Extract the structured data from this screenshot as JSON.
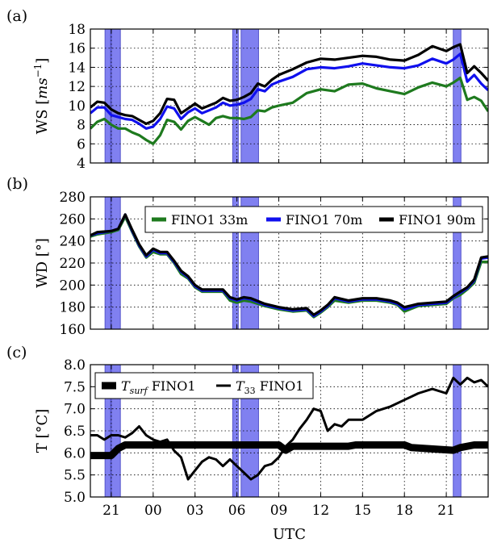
{
  "chart_data": [
    {
      "type": "line",
      "panel_label": "(a)",
      "ylabel": "WS [ms⁻¹]",
      "xlabel": "",
      "ylim": [
        4,
        18
      ],
      "yticks": [
        "4",
        "6",
        "8",
        "10",
        "12",
        "14",
        "16",
        "18"
      ],
      "xlim": [
        19.5,
        48
      ],
      "grid": true,
      "legend": "none",
      "shaded_bands": [
        [
          20.55,
          20.95
        ],
        [
          21.0,
          21.65
        ],
        [
          29.7,
          30.1
        ],
        [
          30.3,
          31.55
        ],
        [
          45.5,
          46.05
        ]
      ],
      "series": [
        {
          "color": "#1e7a1e",
          "x": [
            19.5,
            20.0,
            20.5,
            21.0,
            21.5,
            22.0,
            22.5,
            23.0,
            23.5,
            24.0,
            24.5,
            25.0,
            25.5,
            26.0,
            26.5,
            27.0,
            27.5,
            28.0,
            28.5,
            29.0,
            29.5,
            30.0,
            30.5,
            31.0,
            31.5,
            32.0,
            32.5,
            33.0,
            34.0,
            35.0,
            36.0,
            37.0,
            38.0,
            39.0,
            40.0,
            41.0,
            42.0,
            43.0,
            44.0,
            45.0,
            45.5,
            46.0,
            46.5,
            47.0,
            47.5,
            48.0
          ],
          "values": [
            7.6,
            8.3,
            8.6,
            8.0,
            7.6,
            7.6,
            7.2,
            6.9,
            6.4,
            6.0,
            6.9,
            8.5,
            8.3,
            7.5,
            8.4,
            8.8,
            8.4,
            8.0,
            8.7,
            8.9,
            8.7,
            8.7,
            8.6,
            8.8,
            9.5,
            9.4,
            9.8,
            10.0,
            10.3,
            11.3,
            11.7,
            11.5,
            12.2,
            12.3,
            11.8,
            11.5,
            11.2,
            11.9,
            12.4,
            12.0,
            12.4,
            12.9,
            10.6,
            10.9,
            10.5,
            9.4
          ]
        },
        {
          "color": "#1010ee",
          "x": [
            19.5,
            20.0,
            20.5,
            21.0,
            21.5,
            22.0,
            22.5,
            23.0,
            23.5,
            24.0,
            24.5,
            25.0,
            25.5,
            26.0,
            26.5,
            27.0,
            27.5,
            28.0,
            28.5,
            29.0,
            29.5,
            30.0,
            30.5,
            31.0,
            31.5,
            32.0,
            32.5,
            33.0,
            34.0,
            35.0,
            36.0,
            37.0,
            38.0,
            39.0,
            40.0,
            41.0,
            42.0,
            43.0,
            44.0,
            45.0,
            45.5,
            46.0,
            46.5,
            47.0,
            47.5,
            48.0
          ],
          "values": [
            9.2,
            9.8,
            9.8,
            9.0,
            8.8,
            8.6,
            8.5,
            8.1,
            7.6,
            7.8,
            8.6,
            9.9,
            9.7,
            8.6,
            9.3,
            9.7,
            9.2,
            9.5,
            9.8,
            10.3,
            10.0,
            10.1,
            10.3,
            10.7,
            11.7,
            11.5,
            12.2,
            12.5,
            13.0,
            13.8,
            14.0,
            13.9,
            14.1,
            14.4,
            14.2,
            14.0,
            13.9,
            14.2,
            14.9,
            14.4,
            14.8,
            15.4,
            12.5,
            13.2,
            12.3,
            11.6
          ]
        },
        {
          "color": "#000000",
          "x": [
            19.5,
            20.0,
            20.5,
            21.0,
            21.5,
            22.0,
            22.5,
            23.0,
            23.5,
            24.0,
            24.5,
            25.0,
            25.5,
            26.0,
            26.5,
            27.0,
            27.5,
            28.0,
            28.5,
            29.0,
            29.5,
            30.0,
            30.5,
            31.0,
            31.5,
            32.0,
            32.5,
            33.0,
            34.0,
            35.0,
            36.0,
            37.0,
            38.0,
            39.0,
            40.0,
            41.0,
            42.0,
            43.0,
            44.0,
            45.0,
            45.5,
            46.0,
            46.5,
            47.0,
            47.5,
            48.0
          ],
          "values": [
            9.8,
            10.4,
            10.3,
            9.6,
            9.2,
            9.0,
            8.9,
            8.5,
            8.1,
            8.4,
            9.2,
            10.7,
            10.6,
            9.2,
            9.7,
            10.2,
            9.7,
            10.0,
            10.3,
            10.8,
            10.5,
            10.6,
            10.9,
            11.3,
            12.3,
            12.0,
            12.7,
            13.2,
            13.8,
            14.5,
            14.9,
            14.8,
            15.0,
            15.2,
            15.1,
            14.8,
            14.7,
            15.3,
            16.2,
            15.7,
            16.1,
            16.4,
            13.4,
            14.1,
            13.4,
            12.6
          ]
        }
      ]
    },
    {
      "type": "line",
      "panel_label": "(b)",
      "ylabel": "WD [°]",
      "xlabel": "",
      "ylim": [
        160,
        280
      ],
      "yticks": [
        "160",
        "180",
        "200",
        "220",
        "240",
        "260",
        "280"
      ],
      "xlim": [
        19.5,
        48
      ],
      "grid": true,
      "legend": "top-center",
      "shaded_bands": [
        [
          20.55,
          20.95
        ],
        [
          21.0,
          21.65
        ],
        [
          29.7,
          30.1
        ],
        [
          30.3,
          31.55
        ],
        [
          45.5,
          46.05
        ]
      ],
      "series": [
        {
          "name": "FINO1 33m",
          "color": "#1e7a1e",
          "x": [
            19.5,
            20.0,
            21.0,
            21.5,
            22.0,
            22.5,
            23.0,
            23.5,
            24.0,
            24.5,
            25.0,
            25.5,
            26.0,
            26.5,
            27.0,
            27.5,
            28.0,
            29.0,
            29.5,
            30.0,
            30.5,
            31.0,
            32.0,
            33.0,
            34.0,
            35.0,
            35.5,
            36.0,
            36.5,
            37.0,
            38.0,
            39.0,
            40.0,
            41.0,
            41.5,
            42.0,
            43.0,
            44.0,
            45.0,
            45.5,
            46.0,
            46.5,
            47.0,
            47.5,
            48.0
          ],
          "values": [
            244,
            246,
            248,
            250,
            262,
            248,
            235,
            225,
            230,
            228,
            228,
            220,
            210,
            206,
            198,
            194,
            194,
            194,
            186,
            184,
            186,
            185,
            181,
            178,
            176,
            177,
            171,
            175,
            180,
            186,
            184,
            186,
            186,
            184,
            182,
            176,
            181,
            182,
            183,
            188,
            191,
            196,
            202,
            221,
            221
          ]
        },
        {
          "name": "FINO1 70m",
          "color": "#1010ee",
          "x": [
            19.5,
            20.0,
            21.0,
            21.5,
            22.0,
            22.5,
            23.0,
            23.5,
            24.0,
            24.5,
            25.0,
            25.5,
            26.0,
            26.5,
            27.0,
            27.5,
            28.0,
            29.0,
            29.5,
            30.0,
            30.5,
            31.0,
            32.0,
            33.0,
            34.0,
            35.0,
            35.5,
            36.0,
            36.5,
            37.0,
            38.0,
            39.0,
            40.0,
            41.0,
            41.5,
            42.0,
            43.0,
            44.0,
            45.0,
            45.5,
            46.0,
            46.5,
            47.0,
            47.5,
            48.0
          ],
          "values": [
            245,
            247,
            249,
            251,
            264,
            249,
            236,
            226,
            232,
            229,
            229,
            221,
            212,
            207,
            199,
            195,
            195,
            195,
            188,
            186,
            188,
            187,
            182,
            179,
            177,
            178,
            172,
            176,
            181,
            188,
            185,
            187,
            187,
            185,
            183,
            178,
            182,
            183,
            184,
            189,
            193,
            197,
            204,
            224,
            225
          ]
        },
        {
          "name": "FINO1 90m",
          "color": "#000000",
          "x": [
            19.5,
            20.0,
            21.0,
            21.5,
            22.0,
            22.5,
            23.0,
            23.5,
            24.0,
            24.5,
            25.0,
            25.5,
            26.0,
            26.5,
            27.0,
            27.5,
            28.0,
            29.0,
            29.5,
            30.0,
            30.5,
            31.0,
            32.0,
            33.0,
            34.0,
            35.0,
            35.5,
            36.0,
            36.5,
            37.0,
            38.0,
            39.0,
            40.0,
            41.0,
            41.5,
            42.0,
            43.0,
            44.0,
            45.0,
            45.5,
            46.0,
            46.5,
            47.0,
            47.5,
            48.0
          ],
          "values": [
            245,
            248,
            249,
            251,
            264,
            250,
            237,
            227,
            233,
            230,
            230,
            222,
            213,
            208,
            200,
            196,
            196,
            196,
            189,
            187,
            189,
            188,
            183,
            180,
            178,
            179,
            173,
            177,
            182,
            189,
            186,
            188,
            188,
            186,
            184,
            180,
            183,
            184,
            185,
            190,
            194,
            198,
            205,
            225,
            226
          ]
        }
      ]
    },
    {
      "type": "line",
      "panel_label": "(c)",
      "ylabel": "T [°C]",
      "xlabel": "UTC",
      "ylim": [
        5.0,
        8.0
      ],
      "yticks": [
        "5.0",
        "5.5",
        "6.0",
        "6.5",
        "7.0",
        "7.5",
        "8.0"
      ],
      "xlim": [
        19.5,
        48
      ],
      "xticks": [
        {
          "value": 21,
          "label": "21"
        },
        {
          "value": 24,
          "label": "00"
        },
        {
          "value": 27,
          "label": "03"
        },
        {
          "value": 30,
          "label": "06"
        },
        {
          "value": 33,
          "label": "09"
        },
        {
          "value": 36,
          "label": "12"
        },
        {
          "value": 39,
          "label": "15"
        },
        {
          "value": 42,
          "label": "18"
        },
        {
          "value": 45,
          "label": "21"
        }
      ],
      "grid": true,
      "legend": "top-center",
      "shaded_bands": [
        [
          20.55,
          20.95
        ],
        [
          21.0,
          21.65
        ],
        [
          29.7,
          30.1
        ],
        [
          30.3,
          31.55
        ],
        [
          45.5,
          46.05
        ]
      ],
      "series": [
        {
          "name": "T_surf FINO1",
          "color": "#000000",
          "x": [
            19.5,
            21.0,
            21.5,
            22.0,
            33.0,
            33.5,
            34.0,
            38.0,
            38.5,
            42.0,
            42.5,
            45.5,
            46.0,
            47.0,
            48.0
          ],
          "values": [
            5.94,
            5.94,
            6.1,
            6.18,
            6.18,
            6.06,
            6.15,
            6.15,
            6.18,
            6.18,
            6.12,
            6.06,
            6.12,
            6.18,
            6.18
          ]
        },
        {
          "name": "T_33 FINO1",
          "color": "#000000",
          "x": [
            19.5,
            20.0,
            20.5,
            21.0,
            21.5,
            22.0,
            22.5,
            23.0,
            23.5,
            24.0,
            24.5,
            25.0,
            25.5,
            26.0,
            26.5,
            27.0,
            27.5,
            28.0,
            28.5,
            29.0,
            29.5,
            30.0,
            30.5,
            31.0,
            31.5,
            32.0,
            32.5,
            33.0,
            33.5,
            34.0,
            34.5,
            35.0,
            35.5,
            36.0,
            36.5,
            37.0,
            37.5,
            38.0,
            39.0,
            40.0,
            41.0,
            42.0,
            43.0,
            44.0,
            45.0,
            45.5,
            46.0,
            46.5,
            47.0,
            47.5,
            48.0
          ],
          "values": [
            6.4,
            6.4,
            6.3,
            6.4,
            6.4,
            6.35,
            6.45,
            6.6,
            6.4,
            6.3,
            6.25,
            6.3,
            6.05,
            5.9,
            5.4,
            5.6,
            5.8,
            5.9,
            5.85,
            5.7,
            5.85,
            5.7,
            5.55,
            5.4,
            5.5,
            5.7,
            5.75,
            5.9,
            6.15,
            6.3,
            6.55,
            6.75,
            7.0,
            6.95,
            6.5,
            6.65,
            6.6,
            6.75,
            6.75,
            6.95,
            7.05,
            7.2,
            7.35,
            7.45,
            7.35,
            7.7,
            7.55,
            7.7,
            7.6,
            7.65,
            7.5
          ]
        }
      ]
    }
  ]
}
